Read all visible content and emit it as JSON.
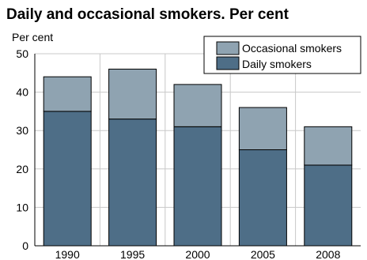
{
  "chart_data": {
    "type": "bar",
    "stacked": true,
    "title": "Daily and occasional smokers. Per cent",
    "ylabel": "Per cent",
    "xlabel": "",
    "categories": [
      "1990",
      "1995",
      "2000",
      "2005",
      "2008"
    ],
    "series": [
      {
        "name": "Daily smokers",
        "values": [
          35,
          33,
          31,
          25,
          21
        ],
        "color": "#4e6e87"
      },
      {
        "name": "Occasional smokers",
        "values": [
          9,
          13,
          11,
          11,
          10
        ],
        "color": "#8fa3b1"
      }
    ],
    "ylim": [
      0,
      50
    ],
    "yticks": [
      "0",
      "10",
      "20",
      "30",
      "40",
      "50"
    ],
    "grid": true,
    "legend": {
      "position": "top-right",
      "entries": [
        "Occasional smokers",
        "Daily smokers"
      ]
    }
  },
  "colors": {
    "grid": "#c8c8c8",
    "bar_outline": "#000000"
  }
}
